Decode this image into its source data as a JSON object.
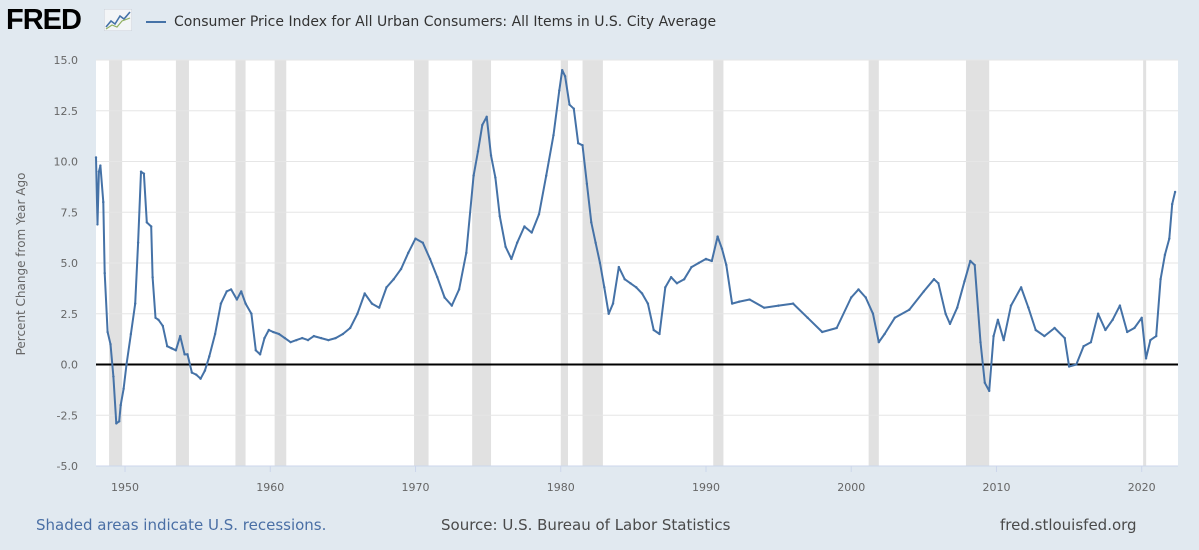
{
  "header": {
    "logo_text": "FRED",
    "legend_label": "Consumer Price Index for All Urban Consumers: All Items in U.S. City Average"
  },
  "footer": {
    "recession_note": "Shaded areas indicate U.S. recessions.",
    "source": "Source: U.S. Bureau of Labor Statistics",
    "site": "fred.stlouisfed.org"
  },
  "colors": {
    "series": "#4572a7",
    "recession": "#e1e1e1",
    "background": "#e1e9f0",
    "plot": "#ffffff"
  },
  "chart_data": {
    "type": "line",
    "title": "",
    "xlabel": "",
    "ylabel": "Percent Change from Year Ago",
    "xlim": [
      1948.0,
      2022.5
    ],
    "ylim": [
      -5.0,
      15.0
    ],
    "y_ticks": [
      -5.0,
      -2.5,
      0.0,
      2.5,
      5.0,
      7.5,
      10.0,
      12.5,
      15.0
    ],
    "y_tick_labels": [
      "-5.0",
      "-2.5",
      "0.0",
      "2.5",
      "5.0",
      "7.5",
      "10.0",
      "12.5",
      "15.0"
    ],
    "x_ticks": [
      1950,
      1960,
      1970,
      1980,
      1990,
      2000,
      2010,
      2020
    ],
    "x_tick_labels": [
      "1950",
      "1960",
      "1970",
      "1980",
      "1990",
      "2000",
      "2010",
      "2020"
    ],
    "grid": "horizontal",
    "zero_line": true,
    "recessions": [
      [
        1948.9,
        1949.8
      ],
      [
        1953.5,
        1954.4
      ],
      [
        1957.6,
        1958.3
      ],
      [
        1960.3,
        1961.1
      ],
      [
        1969.9,
        1970.9
      ],
      [
        1973.9,
        1975.2
      ],
      [
        1980.0,
        1980.5
      ],
      [
        1981.5,
        1982.9
      ],
      [
        1990.5,
        1991.2
      ],
      [
        2001.2,
        2001.9
      ],
      [
        2007.9,
        2009.5
      ],
      [
        2020.1,
        2020.3
      ]
    ],
    "series": [
      {
        "name": "Consumer Price Index for All Urban Consumers: All Items in U.S. City Average",
        "x": [
          1948.0,
          1948.1,
          1948.2,
          1948.3,
          1948.5,
          1948.6,
          1948.8,
          1949.0,
          1949.2,
          1949.4,
          1949.6,
          1949.7,
          1949.9,
          1950.1,
          1950.4,
          1950.7,
          1950.9,
          1951.1,
          1951.3,
          1951.5,
          1951.8,
          1951.9,
          1952.1,
          1952.3,
          1952.6,
          1952.9,
          1953.2,
          1953.5,
          1953.8,
          1954.1,
          1954.3,
          1954.6,
          1954.9,
          1955.2,
          1955.5,
          1955.8,
          1956.2,
          1956.6,
          1957.0,
          1957.3,
          1957.7,
          1958.0,
          1958.3,
          1958.7,
          1959.0,
          1959.3,
          1959.6,
          1959.9,
          1960.2,
          1960.6,
          1961.0,
          1961.4,
          1961.8,
          1962.2,
          1962.6,
          1963.0,
          1963.5,
          1964.0,
          1964.5,
          1965.0,
          1965.5,
          1966.0,
          1966.5,
          1967.0,
          1967.5,
          1968.0,
          1968.5,
          1969.0,
          1969.5,
          1970.0,
          1970.5,
          1971.0,
          1971.5,
          1972.0,
          1972.5,
          1973.0,
          1973.5,
          1974.0,
          1974.3,
          1974.6,
          1974.9,
          1975.2,
          1975.5,
          1975.8,
          1976.2,
          1976.6,
          1977.0,
          1977.5,
          1978.0,
          1978.5,
          1979.0,
          1979.5,
          1979.9,
          1980.1,
          1980.3,
          1980.6,
          1980.9,
          1981.2,
          1981.5,
          1981.8,
          1982.1,
          1982.4,
          1982.7,
          1983.0,
          1983.3,
          1983.6,
          1984.0,
          1984.4,
          1984.8,
          1985.2,
          1985.6,
          1986.0,
          1986.4,
          1986.8,
          1987.2,
          1987.6,
          1988.0,
          1988.5,
          1989.0,
          1989.5,
          1990.0,
          1990.4,
          1990.8,
          1991.1,
          1991.4,
          1991.8,
          1992.3,
          1993.0,
          1994.0,
          1995.0,
          1996.0,
          1997.0,
          1998.0,
          1999.0,
          2000.0,
          2000.5,
          2001.0,
          2001.5,
          2001.9,
          2002.3,
          2003.0,
          2004.0,
          2005.0,
          2005.7,
          2006.0,
          2006.5,
          2006.8,
          2007.3,
          2007.8,
          2008.2,
          2008.5,
          2008.9,
          2009.2,
          2009.5,
          2009.8,
          2010.1,
          2010.5,
          2011.0,
          2011.7,
          2012.2,
          2012.7,
          2013.3,
          2014.0,
          2014.7,
          2015.0,
          2015.5,
          2016.0,
          2016.5,
          2017.0,
          2017.5,
          2018.0,
          2018.5,
          2019.0,
          2019.5,
          2020.0,
          2020.3,
          2020.6,
          2021.0,
          2021.3,
          2021.6,
          2021.9,
          2022.1,
          2022.3
        ],
        "values": [
          10.2,
          6.9,
          9.5,
          9.8,
          8.0,
          4.5,
          1.6,
          1.0,
          -0.6,
          -2.9,
          -2.8,
          -2.0,
          -1.2,
          0.0,
          1.5,
          3.0,
          6.0,
          9.5,
          9.4,
          7.0,
          6.8,
          4.3,
          2.3,
          2.2,
          1.9,
          0.9,
          0.8,
          0.7,
          1.4,
          0.5,
          0.5,
          -0.4,
          -0.5,
          -0.7,
          -0.3,
          0.4,
          1.5,
          3.0,
          3.6,
          3.7,
          3.2,
          3.6,
          3.0,
          2.5,
          0.7,
          0.5,
          1.3,
          1.7,
          1.6,
          1.5,
          1.3,
          1.1,
          1.2,
          1.3,
          1.2,
          1.4,
          1.3,
          1.2,
          1.3,
          1.5,
          1.8,
          2.5,
          3.5,
          3.0,
          2.8,
          3.8,
          4.2,
          4.7,
          5.5,
          6.2,
          6.0,
          5.2,
          4.3,
          3.3,
          2.9,
          3.7,
          5.5,
          9.3,
          10.5,
          11.8,
          12.2,
          10.3,
          9.2,
          7.3,
          5.8,
          5.2,
          6.0,
          6.8,
          6.5,
          7.4,
          9.3,
          11.3,
          13.5,
          14.5,
          14.2,
          12.8,
          12.6,
          10.9,
          10.8,
          8.9,
          7.0,
          6.0,
          5.0,
          3.8,
          2.5,
          3.0,
          4.8,
          4.2,
          4.0,
          3.8,
          3.5,
          3.0,
          1.7,
          1.5,
          3.8,
          4.3,
          4.0,
          4.2,
          4.8,
          5.0,
          5.2,
          5.1,
          6.3,
          5.7,
          4.9,
          3.0,
          3.1,
          3.2,
          2.8,
          2.9,
          3.0,
          2.3,
          1.6,
          1.8,
          3.3,
          3.7,
          3.3,
          2.5,
          1.1,
          1.5,
          2.3,
          2.7,
          3.6,
          4.2,
          4.0,
          2.5,
          2.0,
          2.8,
          4.1,
          5.1,
          4.9,
          1.1,
          -0.9,
          -1.3,
          1.4,
          2.2,
          1.2,
          2.9,
          3.8,
          2.8,
          1.7,
          1.4,
          1.8,
          1.3,
          -0.1,
          0.0,
          0.9,
          1.1,
          2.5,
          1.7,
          2.2,
          2.9,
          1.6,
          1.8,
          2.3,
          0.3,
          1.2,
          1.4,
          4.2,
          5.4,
          6.2,
          7.9,
          8.5
        ]
      }
    ]
  }
}
